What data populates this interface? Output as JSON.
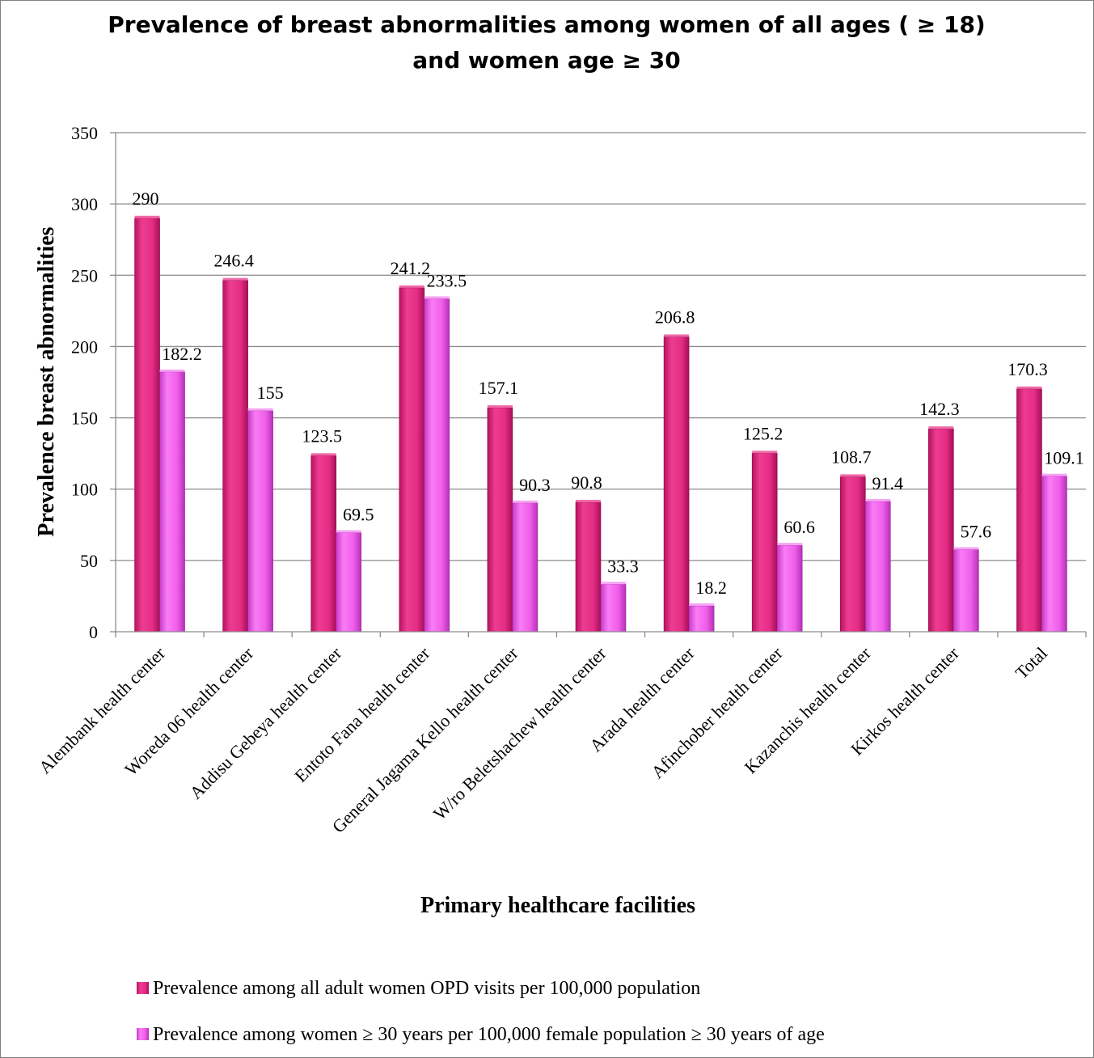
{
  "chart_data": {
    "type": "bar",
    "title_lines": [
      "Prevalence of breast abnormalities among women of all ages ( ≥ 18)",
      "and women age ≥ 30"
    ],
    "xlabel": "Primary healthcare facilities",
    "ylabel": "Prevalence breast abnormalities",
    "ylim": [
      0,
      350
    ],
    "yticks": [
      0,
      50,
      100,
      150,
      200,
      250,
      300,
      350
    ],
    "grid": true,
    "legend_position": "bottom",
    "categories": [
      "Alembank health center",
      "Woreda 06 health center",
      "Addisu Gebeya health center",
      "Entoto Fana health center",
      "General Jagama Kello health center",
      "W/ro Beletshachew health center",
      "Arada health center",
      "Afinchober health center",
      "Kazanchis health center",
      "Kirkos health center",
      "Total"
    ],
    "series": [
      {
        "name": "Prevalence among all adult women OPD visits per 100,000 population",
        "color": "#e8328c",
        "values": [
          290,
          246.4,
          123.5,
          241.2,
          157.1,
          90.8,
          206.8,
          125.2,
          108.7,
          142.3,
          170.3
        ],
        "labels": [
          "290",
          "246.4",
          "123.5",
          "241.2",
          "157.1",
          "90.8",
          "206.8",
          "125.2",
          "108.7",
          "142.3",
          "170.3"
        ]
      },
      {
        "name": "Prevalence among women ≥ 30 years per 100,000 female population ≥ 30 years of age",
        "color": "#ee5cee",
        "values": [
          182.2,
          155,
          69.5,
          233.5,
          90.3,
          33.3,
          18.2,
          60.6,
          91.4,
          57.6,
          109.1
        ],
        "labels": [
          "182.2",
          "155",
          "69.5",
          "233.5",
          "90.3",
          "33.3",
          "18.2",
          "60.6",
          "91.4",
          "57.6",
          "109.1"
        ]
      }
    ]
  }
}
